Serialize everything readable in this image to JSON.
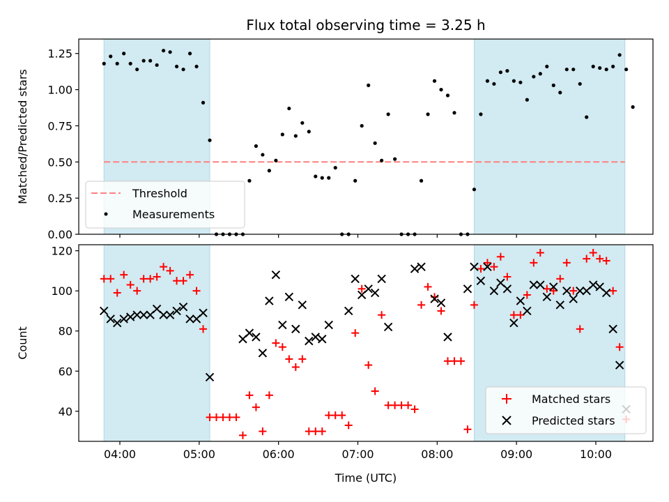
{
  "chart_data": {
    "type": "scatter",
    "title": "Flux total observing time = 3.25 h",
    "xlabel": "Time (UTC)",
    "x_ticks": [
      "04:00",
      "05:00",
      "06:00",
      "07:00",
      "08:00",
      "09:00",
      "10:00"
    ],
    "shaded_intervals": [
      [
        "03:48",
        "05:08"
      ],
      [
        "08:28",
        "10:22"
      ]
    ],
    "shade_color": "#add8e6",
    "panels": [
      {
        "ylabel": "Matched/Predicted stars",
        "ylim": [
          0,
          1.35
        ],
        "y_ticks": [
          "0.00",
          "0.25",
          "0.50",
          "0.75",
          "1.00",
          "1.25"
        ],
        "threshold": 0.5,
        "legend_position": "lower left",
        "legend": [
          "Threshold",
          "Measurements"
        ],
        "series": [
          {
            "name": "Measurements",
            "marker": "dot",
            "color": "#000000",
            "points": [
              [
                "03:48",
                1.18
              ],
              [
                "03:53",
                1.23
              ],
              [
                "03:58",
                1.18
              ],
              [
                "04:03",
                1.25
              ],
              [
                "04:08",
                1.18
              ],
              [
                "04:13",
                1.14
              ],
              [
                "04:18",
                1.2
              ],
              [
                "04:23",
                1.2
              ],
              [
                "04:28",
                1.17
              ],
              [
                "04:33",
                1.27
              ],
              [
                "04:38",
                1.26
              ],
              [
                "04:43",
                1.16
              ],
              [
                "04:48",
                1.14
              ],
              [
                "04:53",
                1.25
              ],
              [
                "04:58",
                1.16
              ],
              [
                "05:03",
                0.91
              ],
              [
                "05:08",
                0.65
              ],
              [
                "05:13",
                0.0
              ],
              [
                "05:18",
                0.0
              ],
              [
                "05:23",
                0.0
              ],
              [
                "05:28",
                0.0
              ],
              [
                "05:33",
                0.0
              ],
              [
                "05:38",
                0.37
              ],
              [
                "05:43",
                0.61
              ],
              [
                "05:48",
                0.55
              ],
              [
                "05:53",
                0.44
              ],
              [
                "05:58",
                0.51
              ],
              [
                "06:03",
                0.69
              ],
              [
                "06:08",
                0.87
              ],
              [
                "06:13",
                0.68
              ],
              [
                "06:18",
                0.77
              ],
              [
                "06:23",
                0.71
              ],
              [
                "06:28",
                0.4
              ],
              [
                "06:33",
                0.39
              ],
              [
                "06:38",
                0.39
              ],
              [
                "06:43",
                0.46
              ],
              [
                "06:48",
                0.0
              ],
              [
                "06:53",
                0.0
              ],
              [
                "06:58",
                0.37
              ],
              [
                "07:03",
                0.75
              ],
              [
                "07:08",
                1.03
              ],
              [
                "07:13",
                0.63
              ],
              [
                "07:18",
                0.51
              ],
              [
                "07:23",
                0.83
              ],
              [
                "07:28",
                0.52
              ],
              [
                "07:33",
                0.0
              ],
              [
                "07:38",
                0.0
              ],
              [
                "07:43",
                0.0
              ],
              [
                "07:48",
                0.37
              ],
              [
                "07:53",
                0.83
              ],
              [
                "07:58",
                1.06
              ],
              [
                "08:03",
                1.0
              ],
              [
                "08:08",
                0.96
              ],
              [
                "08:13",
                0.84
              ],
              [
                "08:18",
                0.0
              ],
              [
                "08:23",
                0.0
              ],
              [
                "08:28",
                0.31
              ],
              [
                "08:33",
                0.83
              ],
              [
                "08:38",
                1.06
              ],
              [
                "08:43",
                1.04
              ],
              [
                "08:48",
                1.12
              ],
              [
                "08:53",
                1.13
              ],
              [
                "08:58",
                1.06
              ],
              [
                "09:03",
                1.05
              ],
              [
                "09:08",
                0.93
              ],
              [
                "09:13",
                1.09
              ],
              [
                "09:18",
                1.11
              ],
              [
                "09:23",
                1.16
              ],
              [
                "09:28",
                1.03
              ],
              [
                "09:33",
                0.98
              ],
              [
                "09:38",
                1.14
              ],
              [
                "09:43",
                1.14
              ],
              [
                "09:48",
                1.04
              ],
              [
                "09:53",
                0.81
              ],
              [
                "09:58",
                1.16
              ],
              [
                "10:03",
                1.15
              ],
              [
                "10:08",
                1.14
              ],
              [
                "10:13",
                1.16
              ],
              [
                "10:18",
                1.24
              ],
              [
                "10:23",
                1.14
              ],
              [
                "10:28",
                0.88
              ]
            ]
          }
        ]
      },
      {
        "ylabel": "Count",
        "ylim": [
          25,
          123
        ],
        "y_ticks": [
          "40",
          "60",
          "80",
          "100",
          "120"
        ],
        "legend_position": "lower right",
        "legend": [
          "Matched stars",
          "Predicted stars"
        ],
        "series": [
          {
            "name": "Matched stars",
            "marker": "plus",
            "color": "#ff0000",
            "points": [
              [
                "03:48",
                106
              ],
              [
                "03:53",
                106
              ],
              [
                "03:58",
                99
              ],
              [
                "04:03",
                108
              ],
              [
                "04:08",
                103
              ],
              [
                "04:13",
                100
              ],
              [
                "04:18",
                106
              ],
              [
                "04:23",
                106
              ],
              [
                "04:28",
                107
              ],
              [
                "04:33",
                112
              ],
              [
                "04:38",
                110
              ],
              [
                "04:43",
                105
              ],
              [
                "04:48",
                105
              ],
              [
                "04:53",
                108
              ],
              [
                "04:58",
                100
              ],
              [
                "05:03",
                81
              ],
              [
                "05:08",
                37
              ],
              [
                "05:13",
                37
              ],
              [
                "05:18",
                37
              ],
              [
                "05:23",
                37
              ],
              [
                "05:28",
                37
              ],
              [
                "05:33",
                28
              ],
              [
                "05:38",
                48
              ],
              [
                "05:43",
                42
              ],
              [
                "05:48",
                30
              ],
              [
                "05:53",
                48
              ],
              [
                "05:58",
                74
              ],
              [
                "06:03",
                72
              ],
              [
                "06:08",
                66
              ],
              [
                "06:13",
                62
              ],
              [
                "06:18",
                66
              ],
              [
                "06:23",
                30
              ],
              [
                "06:28",
                30
              ],
              [
                "06:33",
                30
              ],
              [
                "06:38",
                38
              ],
              [
                "06:43",
                38
              ],
              [
                "06:48",
                38
              ],
              [
                "06:53",
                33
              ],
              [
                "06:58",
                79
              ],
              [
                "07:03",
                101
              ],
              [
                "07:08",
                63
              ],
              [
                "07:13",
                50
              ],
              [
                "07:18",
                88
              ],
              [
                "07:23",
                43
              ],
              [
                "07:28",
                43
              ],
              [
                "07:33",
                43
              ],
              [
                "07:38",
                43
              ],
              [
                "07:43",
                41
              ],
              [
                "07:48",
                93
              ],
              [
                "07:53",
                102
              ],
              [
                "07:58",
                97
              ],
              [
                "08:03",
                90
              ],
              [
                "08:08",
                65
              ],
              [
                "08:13",
                65
              ],
              [
                "08:18",
                65
              ],
              [
                "08:23",
                31
              ],
              [
                "08:28",
                93
              ],
              [
                "08:33",
                111
              ],
              [
                "08:38",
                114
              ],
              [
                "08:43",
                112
              ],
              [
                "08:48",
                117
              ],
              [
                "08:53",
                107
              ],
              [
                "08:58",
                88
              ],
              [
                "09:03",
                88
              ],
              [
                "09:08",
                98
              ],
              [
                "09:13",
                114
              ],
              [
                "09:18",
                119
              ],
              [
                "09:23",
                101
              ],
              [
                "09:28",
                100
              ],
              [
                "09:33",
                106
              ],
              [
                "09:38",
                114
              ],
              [
                "09:43",
                100
              ],
              [
                "09:48",
                81
              ],
              [
                "09:53",
                116
              ],
              [
                "09:58",
                119
              ],
              [
                "10:03",
                116
              ],
              [
                "10:08",
                115
              ],
              [
                "10:13",
                100
              ],
              [
                "10:18",
                72
              ],
              [
                "10:23",
                36
              ]
            ]
          },
          {
            "name": "Predicted stars",
            "marker": "x",
            "color": "#000000",
            "points": [
              [
                "03:48",
                90
              ],
              [
                "03:53",
                86
              ],
              [
                "03:58",
                84
              ],
              [
                "04:03",
                86
              ],
              [
                "04:08",
                87
              ],
              [
                "04:13",
                88
              ],
              [
                "04:18",
                88
              ],
              [
                "04:23",
                88
              ],
              [
                "04:28",
                91
              ],
              [
                "04:33",
                88
              ],
              [
                "04:38",
                88
              ],
              [
                "04:43",
                90
              ],
              [
                "04:48",
                92
              ],
              [
                "04:53",
                86
              ],
              [
                "04:58",
                86
              ],
              [
                "05:03",
                89
              ],
              [
                "05:08",
                57
              ],
              [
                "05:33",
                76
              ],
              [
                "05:38",
                79
              ],
              [
                "05:43",
                77
              ],
              [
                "05:48",
                69
              ],
              [
                "05:53",
                95
              ],
              [
                "05:58",
                108
              ],
              [
                "06:03",
                83
              ],
              [
                "06:08",
                97
              ],
              [
                "06:13",
                81
              ],
              [
                "06:18",
                93
              ],
              [
                "06:23",
                75
              ],
              [
                "06:28",
                77
              ],
              [
                "06:33",
                76
              ],
              [
                "06:38",
                83
              ],
              [
                "06:53",
                90
              ],
              [
                "06:58",
                106
              ],
              [
                "07:03",
                98
              ],
              [
                "07:08",
                101
              ],
              [
                "07:13",
                99
              ],
              [
                "07:18",
                106
              ],
              [
                "07:23",
                82
              ],
              [
                "07:43",
                111
              ],
              [
                "07:48",
                112
              ],
              [
                "07:58",
                96
              ],
              [
                "08:03",
                94
              ],
              [
                "08:08",
                77
              ],
              [
                "08:23",
                101
              ],
              [
                "08:28",
                112
              ],
              [
                "08:33",
                105
              ],
              [
                "08:38",
                112
              ],
              [
                "08:43",
                100
              ],
              [
                "08:48",
                104
              ],
              [
                "08:53",
                101
              ],
              [
                "08:58",
                84
              ],
              [
                "09:03",
                95
              ],
              [
                "09:08",
                90
              ],
              [
                "09:13",
                103
              ],
              [
                "09:18",
                103
              ],
              [
                "09:23",
                97
              ],
              [
                "09:28",
                102
              ],
              [
                "09:33",
                93
              ],
              [
                "09:38",
                100
              ],
              [
                "09:43",
                96
              ],
              [
                "09:48",
                100
              ],
              [
                "09:53",
                100
              ],
              [
                "09:58",
                103
              ],
              [
                "10:03",
                102
              ],
              [
                "10:08",
                99
              ],
              [
                "10:13",
                81
              ],
              [
                "10:18",
                63
              ],
              [
                "10:23",
                41
              ]
            ]
          }
        ]
      }
    ]
  }
}
